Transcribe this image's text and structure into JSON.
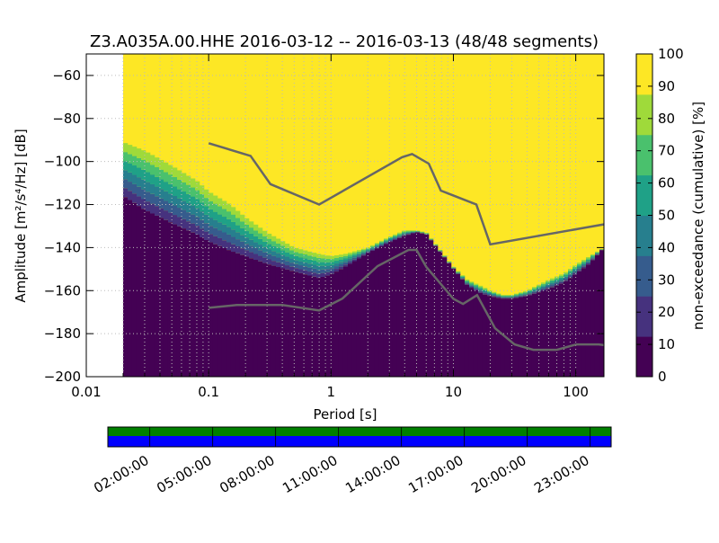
{
  "chart_data": [
    {
      "type": "heatmap",
      "title": "Z3.A035A.00.HHE   2016-03-12 -- 2016-03-13  (48/48 segments)",
      "xlabel": "Period [s]",
      "ylabel": "Amplitude [m²/s⁴/Hz] [dB]",
      "x_scale": "log",
      "xlim": [
        0.01,
        170
      ],
      "ylim": [
        -200,
        -50
      ],
      "x_ticks": [
        0.01,
        0.1,
        1,
        10,
        100
      ],
      "x_tick_labels": [
        "0.01",
        "0.1",
        "1",
        "10",
        "100"
      ],
      "y_ticks": [
        -200,
        -180,
        -160,
        -140,
        -120,
        -100,
        -80,
        -60
      ],
      "y_tick_labels": [
        "−200",
        "−180",
        "−160",
        "−140",
        "−120",
        "−100",
        "−80",
        "−60"
      ],
      "data_start_period": 0.02,
      "grid": true,
      "colormap": [
        "#440154",
        "#46327e",
        "#365c8d",
        "#277f8e",
        "#1fa187",
        "#4ac16d",
        "#9fda3a",
        "#fde725"
      ],
      "percentile_curves": {
        "period": [
          0.02,
          0.03,
          0.05,
          0.08,
          0.1,
          0.15,
          0.2,
          0.3,
          0.5,
          0.8,
          1,
          1.3,
          2,
          3,
          4,
          5,
          6,
          8,
          10,
          13,
          17,
          20,
          25,
          30,
          40,
          60,
          80,
          100,
          130,
          170
        ],
        "p0": [
          -120,
          -127,
          -133,
          -138,
          -141,
          -145,
          -147,
          -150,
          -153,
          -156,
          -154,
          -150,
          -143,
          -138,
          -135,
          -133,
          -134,
          -143,
          -150,
          -158,
          -162,
          -163,
          -164,
          -164,
          -163,
          -160,
          -157,
          -153,
          -148,
          -140
        ],
        "p100": [
          -91,
          -95,
          -102,
          -109,
          -114,
          -120,
          -126,
          -133,
          -140,
          -143,
          -144,
          -143,
          -140,
          -135,
          -132,
          -132,
          -133,
          -142,
          -149,
          -155,
          -158,
          -160,
          -162,
          -162,
          -160,
          -155,
          -152,
          -148,
          -144,
          -140
        ]
      },
      "noise_models": {
        "high": {
          "period": [
            0.1,
            0.22,
            0.32,
            0.8,
            3.8,
            4.6,
            6.3,
            7.9,
            15.4,
            20,
            354.8
          ],
          "db": [
            -91.5,
            -97.4,
            -110.5,
            -120,
            -98,
            -96.5,
            -101,
            -113.5,
            -120,
            -138.5,
            -126
          ]
        },
        "low": {
          "period": [
            0.1,
            0.17,
            0.4,
            0.8,
            1.24,
            2.4,
            4.3,
            5,
            6,
            10,
            12,
            15.6,
            21.9,
            31.6,
            45,
            70,
            101,
            154,
            328
          ],
          "db": [
            -168,
            -166.7,
            -166.7,
            -169.2,
            -163.7,
            -148.6,
            -141.1,
            -141.1,
            -149,
            -163.8,
            -166.2,
            -162.1,
            -177.5,
            -185,
            -187.5,
            -187.5,
            -185,
            -185,
            -187.5
          ]
        }
      }
    },
    {
      "type": "colorbar",
      "label": "non-exceedance (cumulative) [%]",
      "range": [
        0,
        100
      ],
      "ticks": [
        0,
        10,
        20,
        30,
        40,
        50,
        60,
        70,
        80,
        90,
        100
      ]
    },
    {
      "type": "timeline",
      "tick_labels": [
        "02:00:00",
        "05:00:00",
        "08:00:00",
        "11:00:00",
        "14:00:00",
        "17:00:00",
        "20:00:00",
        "23:00:00"
      ],
      "tick_hours": [
        2,
        5,
        8,
        11,
        14,
        17,
        20,
        23
      ],
      "rows": [
        {
          "color": "#008000"
        },
        {
          "color": "#0000ff"
        }
      ]
    }
  ]
}
